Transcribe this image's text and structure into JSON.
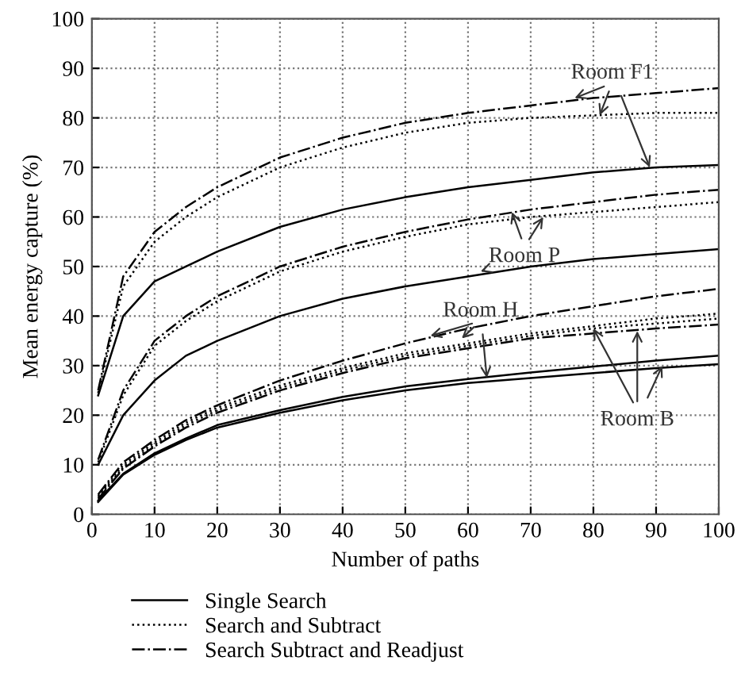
{
  "chart_data": {
    "type": "line",
    "xlabel": "Number of paths",
    "ylabel": "Mean energy capture (%)",
    "x": [
      1,
      5,
      10,
      15,
      20,
      30,
      40,
      50,
      60,
      70,
      80,
      90,
      100
    ],
    "xlim": [
      0,
      100
    ],
    "xticks": [
      0,
      10,
      20,
      30,
      40,
      50,
      60,
      70,
      80,
      90,
      100
    ],
    "ylim": [
      0,
      100
    ],
    "yticks": [
      0,
      10,
      20,
      30,
      40,
      50,
      60,
      70,
      80,
      90,
      100
    ],
    "grid": true,
    "legend": "bottom",
    "marker": "none",
    "series": [
      {
        "name": "Single Search",
        "color": "#000000",
        "line_style": "solid",
        "values": [
          24,
          40,
          47,
          50,
          53,
          58,
          61.5,
          64,
          66,
          67.5,
          69,
          70,
          70.5
        ]
      },
      {
        "name": "Search and Subtract",
        "color": "#000000",
        "line_style": "dotted",
        "values": [
          24.5,
          46,
          55,
          60,
          64,
          70,
          74,
          77,
          79,
          80,
          80.5,
          81,
          81
        ]
      },
      {
        "name": "Search Subtract and Readjust",
        "color": "#000000",
        "line_style": "dashdot",
        "values": [
          25,
          48,
          57,
          62,
          66,
          72,
          76,
          79,
          81,
          82.5,
          84,
          85,
          86
        ]
      },
      {
        "color": "#000000",
        "line_style": "solid",
        "values": [
          10,
          20,
          27,
          32,
          35,
          40,
          43.5,
          46,
          48,
          50,
          51.5,
          52.5,
          53.5
        ]
      },
      {
        "color": "#000000",
        "line_style": "dotted",
        "values": [
          10.5,
          24,
          34,
          39,
          43,
          49,
          53,
          56,
          58.5,
          60,
          61,
          62,
          63
        ]
      },
      {
        "color": "#000000",
        "line_style": "dashdot",
        "values": [
          11,
          25,
          35,
          40,
          44,
          50,
          54,
          57,
          59.5,
          61.5,
          63,
          64.5,
          65.5
        ]
      },
      {
        "color": "#000000",
        "line_style": "solid",
        "values": [
          2.8,
          8.2,
          12.3,
          15.3,
          18,
          21,
          23.7,
          25.8,
          27.3,
          28.6,
          29.8,
          31,
          32
        ]
      },
      {
        "color": "#000000",
        "line_style": "dotted",
        "values": [
          3.7,
          10,
          14.5,
          18.5,
          21.5,
          26,
          29.5,
          32.5,
          34.5,
          36.5,
          38,
          39.5,
          40.5
        ]
      },
      {
        "color": "#000000",
        "line_style": "dashdot",
        "values": [
          4,
          10.5,
          15,
          19,
          22,
          27,
          31,
          34.5,
          37.5,
          40,
          42,
          44,
          45.5
        ]
      },
      {
        "color": "#000000",
        "line_style": "solid",
        "values": [
          2.5,
          8,
          12,
          15,
          17.5,
          20.5,
          23,
          25,
          26.5,
          27.5,
          28.5,
          29.5,
          30.3
        ]
      },
      {
        "color": "#000000",
        "line_style": "dotted",
        "values": [
          3.4,
          9.5,
          14,
          18,
          21,
          25.5,
          29,
          32,
          34,
          36,
          37.5,
          38.5,
          39.5
        ]
      },
      {
        "color": "#000000",
        "line_style": "dashdot",
        "values": [
          3.1,
          9.2,
          13.7,
          17.5,
          20.5,
          25,
          28.5,
          31.5,
          33.5,
          35.5,
          36.5,
          37.5,
          38.3
        ]
      }
    ],
    "annotations": [
      {
        "text": "Room F1",
        "x": 89,
        "y": 70
      },
      {
        "text": "Room P",
        "x": 62,
        "y": 49
      },
      {
        "text": "Room H",
        "x": 63,
        "y": 27.5
      },
      {
        "text": "Room B",
        "x": 91,
        "y": 30
      }
    ]
  }
}
